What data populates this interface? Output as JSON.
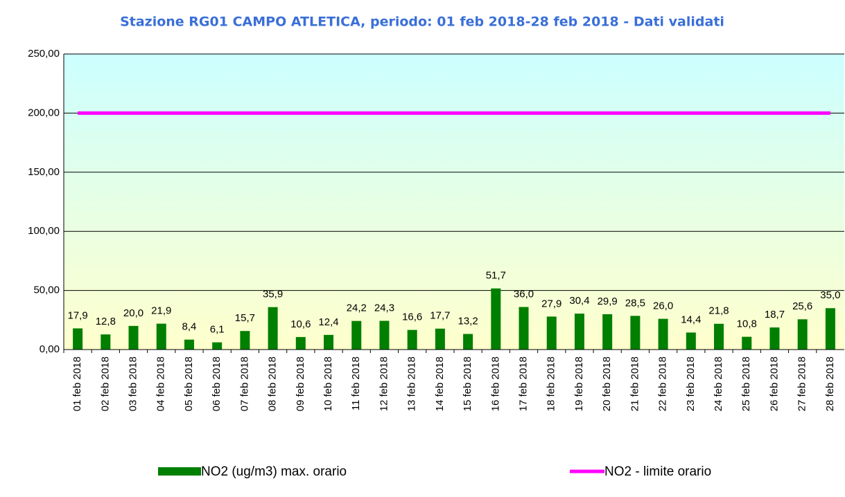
{
  "chart_data": {
    "type": "bar",
    "title": "Stazione RG01 CAMPO ATLETICA, periodo: 01 feb 2018-28 feb 2018 - Dati validati",
    "categories": [
      "01 feb 2018",
      "02 feb 2018",
      "03 feb 2018",
      "04 feb 2018",
      "05 feb 2018",
      "06 feb 2018",
      "07 feb 2018",
      "08 feb 2018",
      "09 feb 2018",
      "10 feb 2018",
      "11 feb 2018",
      "12 feb 2018",
      "13 feb 2018",
      "14 feb 2018",
      "15 feb 2018",
      "16 feb 2018",
      "17 feb 2018",
      "18 feb 2018",
      "19 feb 2018",
      "20 feb 2018",
      "21 feb 2018",
      "22 feb 2018",
      "23 feb 2018",
      "24 feb 2018",
      "25 feb 2018",
      "26 feb 2018",
      "27 feb 2018",
      "28 feb 2018"
    ],
    "series": [
      {
        "name": "NO2 (ug/m3) max. orario",
        "type": "bar",
        "color": "#007f00",
        "values": [
          17.9,
          12.8,
          20.0,
          21.9,
          8.4,
          6.1,
          15.7,
          35.9,
          10.6,
          12.4,
          24.2,
          24.3,
          16.6,
          17.7,
          13.2,
          51.7,
          36.0,
          27.9,
          30.4,
          29.9,
          28.5,
          26.0,
          14.4,
          21.8,
          10.8,
          18.7,
          25.6,
          35.0
        ],
        "value_labels": [
          "17,9",
          "12,8",
          "20,0",
          "21,9",
          "8,4",
          "6,1",
          "15,7",
          "35,9",
          "10,6",
          "12,4",
          "24,2",
          "24,3",
          "16,6",
          "17,7",
          "13,2",
          "51,7",
          "36,0",
          "27,9",
          "30,4",
          "29,9",
          "28,5",
          "26,0",
          "14,4",
          "21,8",
          "10,8",
          "18,7",
          "25,6",
          "35,0"
        ]
      },
      {
        "name": "NO2 - limite orario",
        "type": "line",
        "color": "#ff00ff",
        "values": [
          200,
          200,
          200,
          200,
          200,
          200,
          200,
          200,
          200,
          200,
          200,
          200,
          200,
          200,
          200,
          200,
          200,
          200,
          200,
          200,
          200,
          200,
          200,
          200,
          200,
          200,
          200,
          200
        ]
      }
    ],
    "ylim": [
      0,
      250
    ],
    "yticks": [
      {
        "value": 0,
        "label": "0,00"
      },
      {
        "value": 50,
        "label": "50,00"
      },
      {
        "value": 100,
        "label": "100,00"
      },
      {
        "value": 150,
        "label": "150,00"
      },
      {
        "value": 200,
        "label": "200,00"
      },
      {
        "value": 250,
        "label": "250,00"
      }
    ],
    "grid": true
  }
}
